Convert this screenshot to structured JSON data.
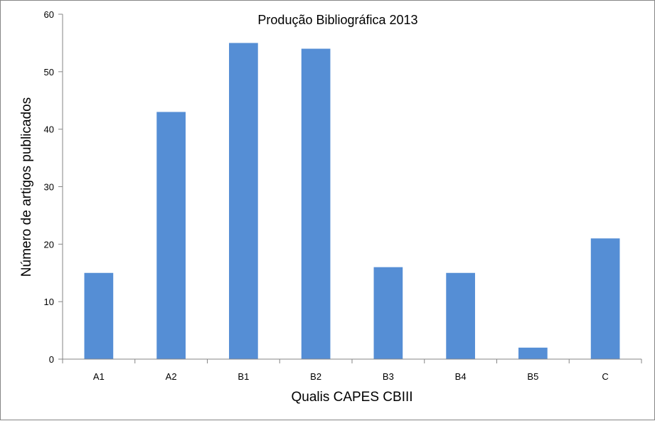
{
  "chart_data": {
    "type": "bar",
    "title": "Produção Bibliográfica  2013",
    "xlabel": "Qualis CAPES CBIII",
    "ylabel": "Número de artigos publicados",
    "categories": [
      "A1",
      "A2",
      "B1",
      "B2",
      "B3",
      "B4",
      "B5",
      "C"
    ],
    "values": [
      15,
      43,
      55,
      54,
      16,
      15,
      2,
      21
    ],
    "ylim": [
      0,
      60
    ],
    "yticks": [
      "0",
      "10",
      "20",
      "30",
      "40",
      "50",
      "60"
    ],
    "grid": false,
    "legend": "none",
    "bar_color": "#558ed5"
  }
}
